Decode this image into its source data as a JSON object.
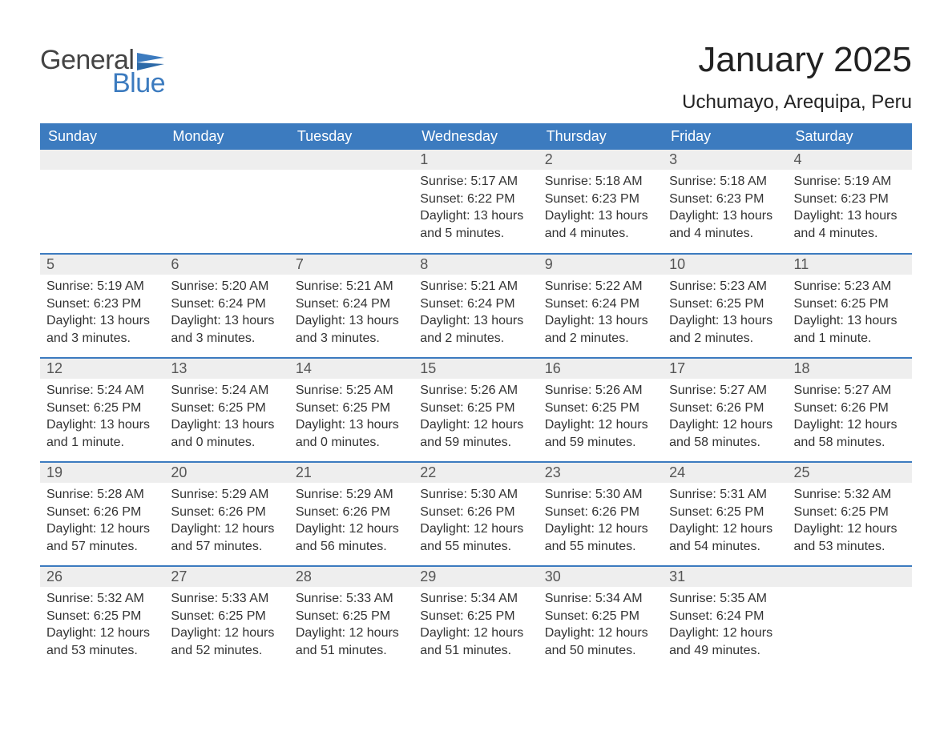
{
  "logo": {
    "general": "General",
    "blue": "Blue",
    "flag_color": "#3c7bbf"
  },
  "title": "January 2025",
  "location": "Uchumayo, Arequipa, Peru",
  "header_bg": "#3c7bbf",
  "header_text_color": "#ffffff",
  "daynum_bg": "#eeeeee",
  "row_border_color": "#3c7bbf",
  "weekdays": [
    "Sunday",
    "Monday",
    "Tuesday",
    "Wednesday",
    "Thursday",
    "Friday",
    "Saturday"
  ],
  "weeks": [
    [
      null,
      null,
      null,
      {
        "n": "1",
        "sunrise": "5:17 AM",
        "sunset": "6:22 PM",
        "daylight": "13 hours and 5 minutes."
      },
      {
        "n": "2",
        "sunrise": "5:18 AM",
        "sunset": "6:23 PM",
        "daylight": "13 hours and 4 minutes."
      },
      {
        "n": "3",
        "sunrise": "5:18 AM",
        "sunset": "6:23 PM",
        "daylight": "13 hours and 4 minutes."
      },
      {
        "n": "4",
        "sunrise": "5:19 AM",
        "sunset": "6:23 PM",
        "daylight": "13 hours and 4 minutes."
      }
    ],
    [
      {
        "n": "5",
        "sunrise": "5:19 AM",
        "sunset": "6:23 PM",
        "daylight": "13 hours and 3 minutes."
      },
      {
        "n": "6",
        "sunrise": "5:20 AM",
        "sunset": "6:24 PM",
        "daylight": "13 hours and 3 minutes."
      },
      {
        "n": "7",
        "sunrise": "5:21 AM",
        "sunset": "6:24 PM",
        "daylight": "13 hours and 3 minutes."
      },
      {
        "n": "8",
        "sunrise": "5:21 AM",
        "sunset": "6:24 PM",
        "daylight": "13 hours and 2 minutes."
      },
      {
        "n": "9",
        "sunrise": "5:22 AM",
        "sunset": "6:24 PM",
        "daylight": "13 hours and 2 minutes."
      },
      {
        "n": "10",
        "sunrise": "5:23 AM",
        "sunset": "6:25 PM",
        "daylight": "13 hours and 2 minutes."
      },
      {
        "n": "11",
        "sunrise": "5:23 AM",
        "sunset": "6:25 PM",
        "daylight": "13 hours and 1 minute."
      }
    ],
    [
      {
        "n": "12",
        "sunrise": "5:24 AM",
        "sunset": "6:25 PM",
        "daylight": "13 hours and 1 minute."
      },
      {
        "n": "13",
        "sunrise": "5:24 AM",
        "sunset": "6:25 PM",
        "daylight": "13 hours and 0 minutes."
      },
      {
        "n": "14",
        "sunrise": "5:25 AM",
        "sunset": "6:25 PM",
        "daylight": "13 hours and 0 minutes."
      },
      {
        "n": "15",
        "sunrise": "5:26 AM",
        "sunset": "6:25 PM",
        "daylight": "12 hours and 59 minutes."
      },
      {
        "n": "16",
        "sunrise": "5:26 AM",
        "sunset": "6:25 PM",
        "daylight": "12 hours and 59 minutes."
      },
      {
        "n": "17",
        "sunrise": "5:27 AM",
        "sunset": "6:26 PM",
        "daylight": "12 hours and 58 minutes."
      },
      {
        "n": "18",
        "sunrise": "5:27 AM",
        "sunset": "6:26 PM",
        "daylight": "12 hours and 58 minutes."
      }
    ],
    [
      {
        "n": "19",
        "sunrise": "5:28 AM",
        "sunset": "6:26 PM",
        "daylight": "12 hours and 57 minutes."
      },
      {
        "n": "20",
        "sunrise": "5:29 AM",
        "sunset": "6:26 PM",
        "daylight": "12 hours and 57 minutes."
      },
      {
        "n": "21",
        "sunrise": "5:29 AM",
        "sunset": "6:26 PM",
        "daylight": "12 hours and 56 minutes."
      },
      {
        "n": "22",
        "sunrise": "5:30 AM",
        "sunset": "6:26 PM",
        "daylight": "12 hours and 55 minutes."
      },
      {
        "n": "23",
        "sunrise": "5:30 AM",
        "sunset": "6:26 PM",
        "daylight": "12 hours and 55 minutes."
      },
      {
        "n": "24",
        "sunrise": "5:31 AM",
        "sunset": "6:25 PM",
        "daylight": "12 hours and 54 minutes."
      },
      {
        "n": "25",
        "sunrise": "5:32 AM",
        "sunset": "6:25 PM",
        "daylight": "12 hours and 53 minutes."
      }
    ],
    [
      {
        "n": "26",
        "sunrise": "5:32 AM",
        "sunset": "6:25 PM",
        "daylight": "12 hours and 53 minutes."
      },
      {
        "n": "27",
        "sunrise": "5:33 AM",
        "sunset": "6:25 PM",
        "daylight": "12 hours and 52 minutes."
      },
      {
        "n": "28",
        "sunrise": "5:33 AM",
        "sunset": "6:25 PM",
        "daylight": "12 hours and 51 minutes."
      },
      {
        "n": "29",
        "sunrise": "5:34 AM",
        "sunset": "6:25 PM",
        "daylight": "12 hours and 51 minutes."
      },
      {
        "n": "30",
        "sunrise": "5:34 AM",
        "sunset": "6:25 PM",
        "daylight": "12 hours and 50 minutes."
      },
      {
        "n": "31",
        "sunrise": "5:35 AM",
        "sunset": "6:24 PM",
        "daylight": "12 hours and 49 minutes."
      },
      null
    ]
  ],
  "labels": {
    "sunrise": "Sunrise:",
    "sunset": "Sunset:",
    "daylight": "Daylight:"
  }
}
